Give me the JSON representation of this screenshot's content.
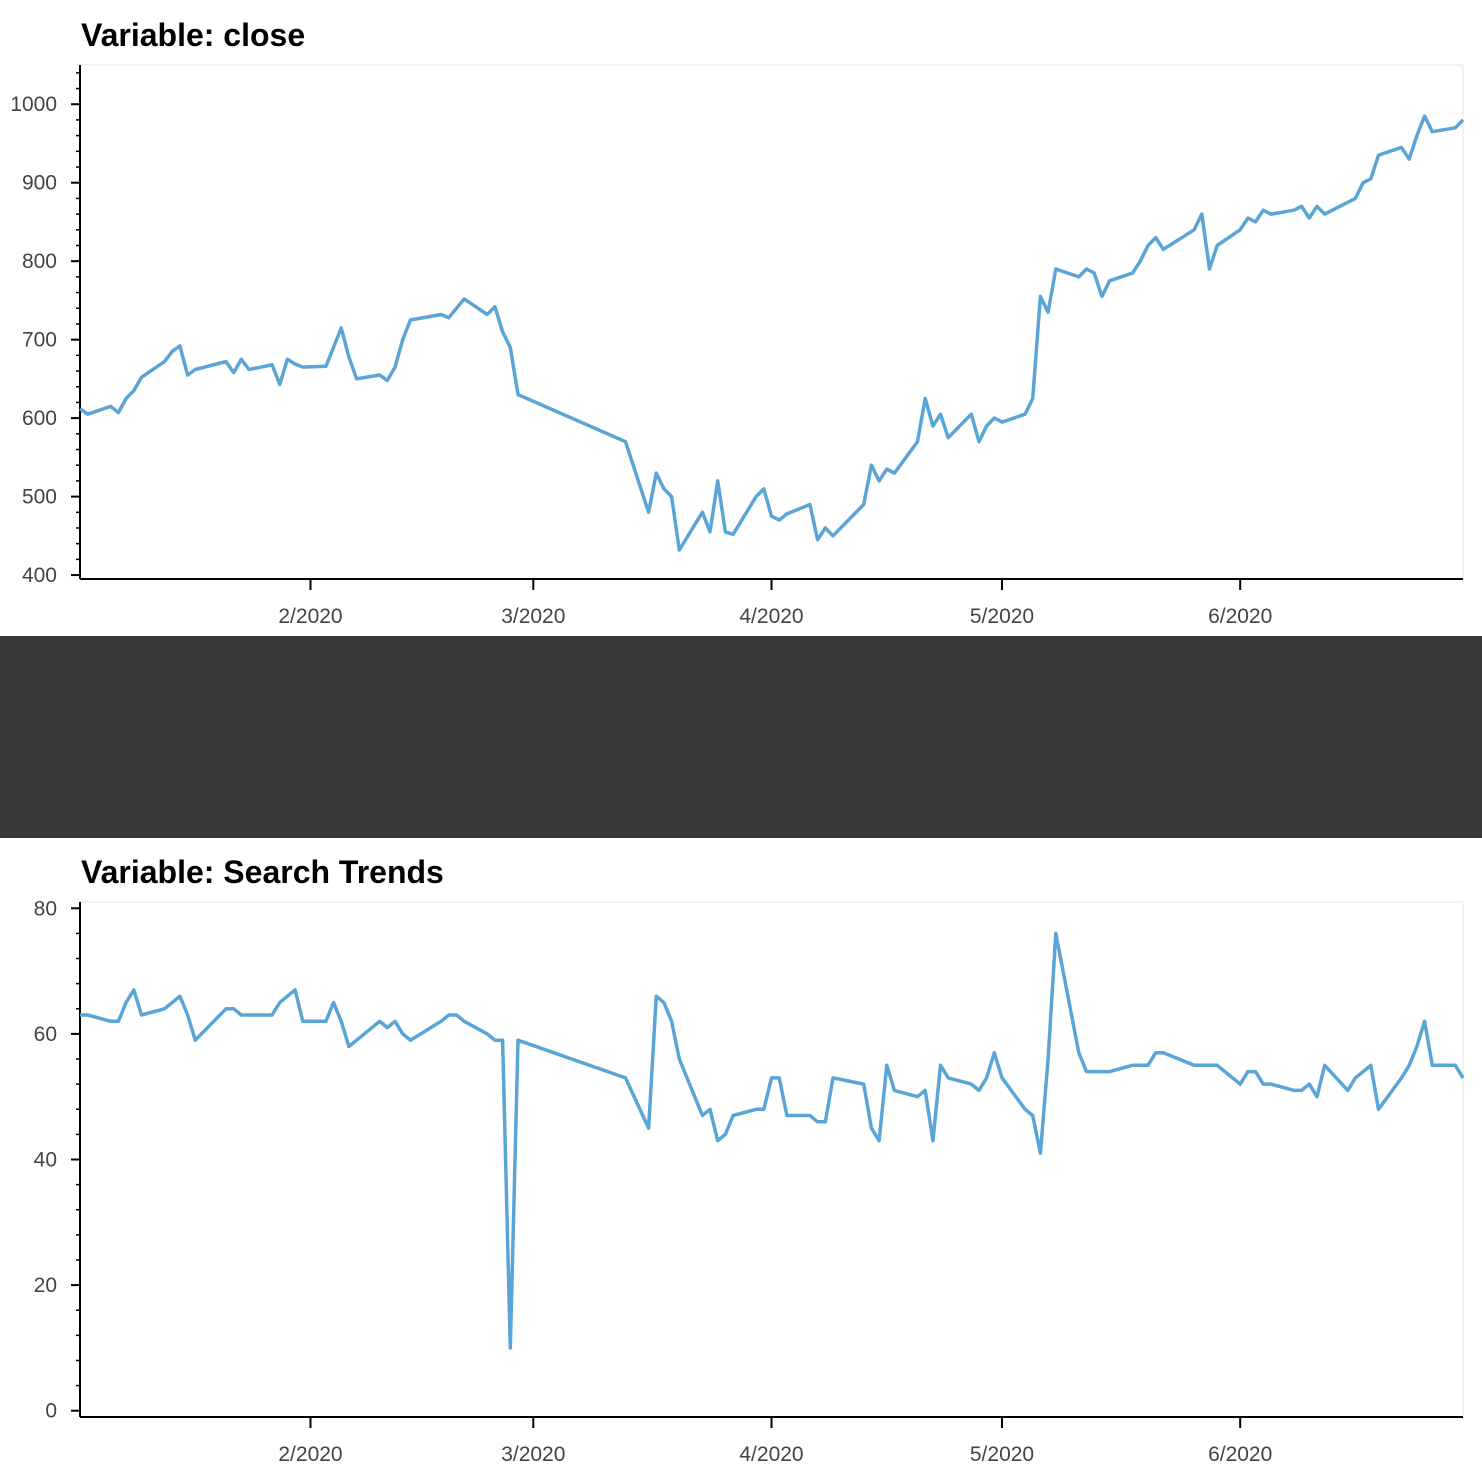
{
  "chart_data": [
    {
      "type": "line",
      "title": "Variable: close",
      "xlabel": "",
      "ylabel": "",
      "xlim": [
        "2020-01-02",
        "2020-06-30"
      ],
      "ylim": [
        395,
        1050
      ],
      "x_ticks": [
        {
          "date": "2020-02-01",
          "label": "2/2020"
        },
        {
          "date": "2020-03-01",
          "label": "3/2020"
        },
        {
          "date": "2020-04-01",
          "label": "4/2020"
        },
        {
          "date": "2020-05-01",
          "label": "5/2020"
        },
        {
          "date": "2020-06-01",
          "label": "6/2020"
        }
      ],
      "y_ticks": [
        400,
        500,
        600,
        700,
        800,
        900,
        1000
      ],
      "grid": false,
      "color": "#5aa5d6",
      "series": [
        {
          "x": [
            "2020-01-02",
            "2020-01-03",
            "2020-01-06",
            "2020-01-07",
            "2020-01-08",
            "2020-01-09",
            "2020-01-10",
            "2020-01-13",
            "2020-01-14",
            "2020-01-15",
            "2020-01-16",
            "2020-01-17",
            "2020-01-21",
            "2020-01-22",
            "2020-01-23",
            "2020-01-24",
            "2020-01-27",
            "2020-01-28",
            "2020-01-29",
            "2020-01-30",
            "2020-01-31",
            "2020-02-03",
            "2020-02-04",
            "2020-02-05",
            "2020-02-06",
            "2020-02-07",
            "2020-02-10",
            "2020-02-11",
            "2020-02-12",
            "2020-02-13",
            "2020-02-14",
            "2020-02-18",
            "2020-02-19",
            "2020-02-20",
            "2020-02-21",
            "2020-02-24",
            "2020-02-25",
            "2020-02-26",
            "2020-02-27",
            "2020-02-28",
            "2020-03-13",
            "2020-03-16",
            "2020-03-17",
            "2020-03-18",
            "2020-03-19",
            "2020-03-20",
            "2020-03-23",
            "2020-03-24",
            "2020-03-25",
            "2020-03-26",
            "2020-03-27",
            "2020-03-30",
            "2020-03-31",
            "2020-04-01",
            "2020-04-02",
            "2020-04-03",
            "2020-04-06",
            "2020-04-07",
            "2020-04-08",
            "2020-04-09",
            "2020-04-13",
            "2020-04-14",
            "2020-04-15",
            "2020-04-16",
            "2020-04-17",
            "2020-04-20",
            "2020-04-21",
            "2020-04-22",
            "2020-04-23",
            "2020-04-24",
            "2020-04-27",
            "2020-04-28",
            "2020-04-29",
            "2020-04-30",
            "2020-05-01",
            "2020-05-04",
            "2020-05-05",
            "2020-05-06",
            "2020-05-07",
            "2020-05-08",
            "2020-05-11",
            "2020-05-12",
            "2020-05-13",
            "2020-05-14",
            "2020-05-15",
            "2020-05-18",
            "2020-05-19",
            "2020-05-20",
            "2020-05-21",
            "2020-05-22",
            "2020-05-26",
            "2020-05-27",
            "2020-05-28",
            "2020-05-29",
            "2020-06-01",
            "2020-06-02",
            "2020-06-03",
            "2020-06-04",
            "2020-06-05",
            "2020-06-08",
            "2020-06-09",
            "2020-06-10",
            "2020-06-11",
            "2020-06-12",
            "2020-06-15",
            "2020-06-16",
            "2020-06-17",
            "2020-06-18",
            "2020-06-19",
            "2020-06-22",
            "2020-06-23",
            "2020-06-24",
            "2020-06-25",
            "2020-06-26",
            "2020-06-29",
            "2020-06-30"
          ],
          "values": [
            612,
            605,
            615,
            607,
            625,
            635,
            652,
            672,
            685,
            692,
            655,
            662,
            672,
            658,
            675,
            662,
            668,
            643,
            675,
            669,
            665,
            666,
            690,
            715,
            678,
            650,
            655,
            648,
            665,
            700,
            725,
            732,
            728,
            740,
            752,
            732,
            742,
            710,
            690,
            630,
            570,
            480,
            530,
            510,
            500,
            432,
            480,
            455,
            520,
            455,
            452,
            500,
            510,
            475,
            470,
            478,
            490,
            445,
            460,
            450,
            490,
            540,
            520,
            535,
            530,
            570,
            625,
            590,
            605,
            575,
            605,
            570,
            590,
            600,
            595,
            605,
            625,
            755,
            735,
            790,
            780,
            790,
            785,
            755,
            775,
            785,
            800,
            820,
            830,
            815,
            840,
            860,
            790,
            820,
            840,
            855,
            850,
            865,
            860,
            865,
            870,
            855,
            870,
            860,
            875,
            880,
            900,
            905,
            935,
            945,
            930,
            960,
            985,
            965,
            970,
            980
          ]
        }
      ]
    },
    {
      "type": "line",
      "title": "Variable: Search Trends",
      "xlabel": "",
      "ylabel": "",
      "xlim": [
        "2020-01-02",
        "2020-06-30"
      ],
      "ylim": [
        -1,
        81
      ],
      "x_ticks": [
        {
          "date": "2020-02-01",
          "label": "2/2020"
        },
        {
          "date": "2020-03-01",
          "label": "3/2020"
        },
        {
          "date": "2020-04-01",
          "label": "4/2020"
        },
        {
          "date": "2020-05-01",
          "label": "5/2020"
        },
        {
          "date": "2020-06-01",
          "label": "6/2020"
        }
      ],
      "y_ticks": [
        0,
        20,
        40,
        60,
        80
      ],
      "grid": false,
      "color": "#5aa5d6",
      "series": [
        {
          "x": [
            "2020-01-02",
            "2020-01-03",
            "2020-01-06",
            "2020-01-07",
            "2020-01-08",
            "2020-01-09",
            "2020-01-10",
            "2020-01-13",
            "2020-01-14",
            "2020-01-15",
            "2020-01-16",
            "2020-01-17",
            "2020-01-21",
            "2020-01-22",
            "2020-01-23",
            "2020-01-24",
            "2020-01-27",
            "2020-01-28",
            "2020-01-29",
            "2020-01-30",
            "2020-01-31",
            "2020-02-03",
            "2020-02-04",
            "2020-02-05",
            "2020-02-06",
            "2020-02-07",
            "2020-02-10",
            "2020-02-11",
            "2020-02-12",
            "2020-02-13",
            "2020-02-14",
            "2020-02-18",
            "2020-02-19",
            "2020-02-20",
            "2020-02-21",
            "2020-02-24",
            "2020-02-25",
            "2020-02-26",
            "2020-02-27",
            "2020-02-28",
            "2020-03-13",
            "2020-03-16",
            "2020-03-17",
            "2020-03-18",
            "2020-03-19",
            "2020-03-20",
            "2020-03-23",
            "2020-03-24",
            "2020-03-25",
            "2020-03-26",
            "2020-03-27",
            "2020-03-30",
            "2020-03-31",
            "2020-04-01",
            "2020-04-02",
            "2020-04-03",
            "2020-04-06",
            "2020-04-07",
            "2020-04-08",
            "2020-04-09",
            "2020-04-13",
            "2020-04-14",
            "2020-04-15",
            "2020-04-16",
            "2020-04-17",
            "2020-04-20",
            "2020-04-21",
            "2020-04-22",
            "2020-04-23",
            "2020-04-24",
            "2020-04-27",
            "2020-04-28",
            "2020-04-29",
            "2020-04-30",
            "2020-05-01",
            "2020-05-04",
            "2020-05-05",
            "2020-05-06",
            "2020-05-07",
            "2020-05-08",
            "2020-05-11",
            "2020-05-12",
            "2020-05-13",
            "2020-05-14",
            "2020-05-15",
            "2020-05-18",
            "2020-05-19",
            "2020-05-20",
            "2020-05-21",
            "2020-05-22",
            "2020-05-26",
            "2020-05-27",
            "2020-05-28",
            "2020-05-29",
            "2020-06-01",
            "2020-06-02",
            "2020-06-03",
            "2020-06-04",
            "2020-06-05",
            "2020-06-08",
            "2020-06-09",
            "2020-06-10",
            "2020-06-11",
            "2020-06-12",
            "2020-06-15",
            "2020-06-16",
            "2020-06-17",
            "2020-06-18",
            "2020-06-19",
            "2020-06-22",
            "2020-06-23",
            "2020-06-24",
            "2020-06-25",
            "2020-06-26",
            "2020-06-29",
            "2020-06-30"
          ],
          "values": [
            63,
            63,
            62,
            62,
            65,
            67,
            63,
            64,
            65,
            66,
            63,
            59,
            64,
            64,
            63,
            63,
            63,
            65,
            66,
            67,
            62,
            62,
            65,
            62,
            58,
            59,
            62,
            61,
            62,
            60,
            59,
            62,
            63,
            63,
            62,
            60,
            59,
            59,
            10,
            59,
            53,
            45,
            66,
            65,
            62,
            56,
            47,
            48,
            43,
            44,
            47,
            48,
            48,
            53,
            53,
            47,
            47,
            46,
            46,
            53,
            52,
            45,
            43,
            55,
            51,
            50,
            51,
            43,
            55,
            53,
            52,
            51,
            53,
            57,
            53,
            48,
            47,
            41,
            56,
            76,
            57,
            54,
            54,
            54,
            54,
            55,
            55,
            55,
            57,
            57,
            55,
            55,
            55,
            55,
            52,
            54,
            54,
            52,
            52,
            51,
            51,
            52,
            50,
            55,
            51,
            53,
            54,
            55,
            48,
            53,
            55,
            58,
            62,
            55,
            55,
            53
          ]
        }
      ]
    }
  ]
}
